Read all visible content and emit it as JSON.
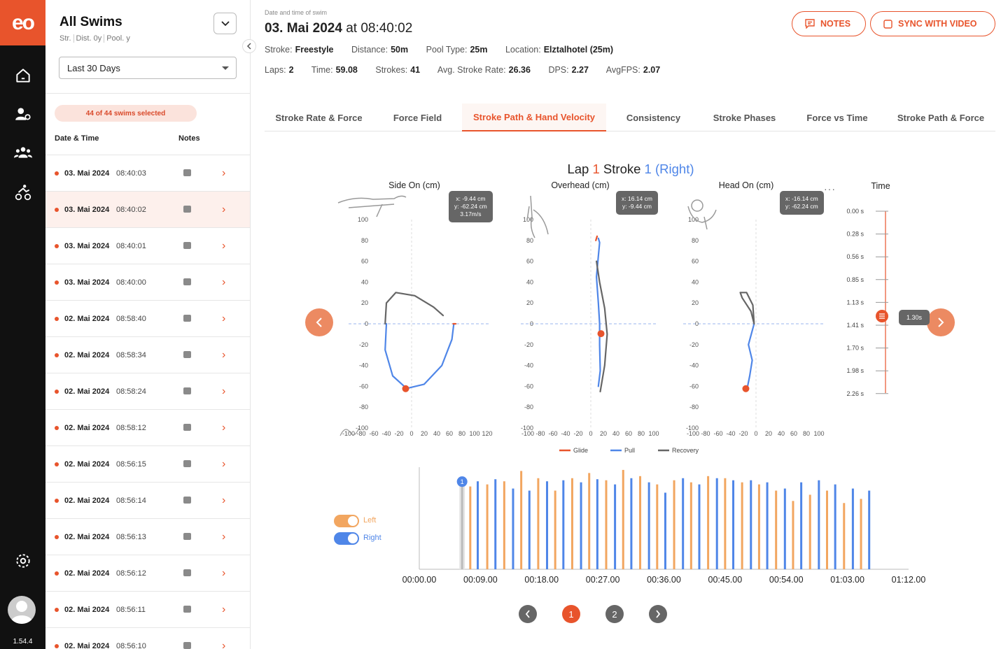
{
  "app": {
    "logo": "eo",
    "version": "1.54.4"
  },
  "sidebar": {
    "title": "All Swims",
    "sub": [
      "Str.",
      "Dist. 0y",
      "Pool. y"
    ],
    "range": "Last  30 Days",
    "selected": "44 of 44 swims selected",
    "col_date": "Date & Time",
    "col_notes": "Notes",
    "swims": [
      {
        "date": "03. Mai 2024",
        "time": "08:40:03"
      },
      {
        "date": "03. Mai 2024",
        "time": "08:40:02"
      },
      {
        "date": "03. Mai 2024",
        "time": "08:40:01"
      },
      {
        "date": "03. Mai 2024",
        "time": "08:40:00"
      },
      {
        "date": "02. Mai 2024",
        "time": "08:58:40"
      },
      {
        "date": "02. Mai 2024",
        "time": "08:58:34"
      },
      {
        "date": "02. Mai 2024",
        "time": "08:58:24"
      },
      {
        "date": "02. Mai 2024",
        "time": "08:58:12"
      },
      {
        "date": "02. Mai 2024",
        "time": "08:56:15"
      },
      {
        "date": "02. Mai 2024",
        "time": "08:56:14"
      },
      {
        "date": "02. Mai 2024",
        "time": "08:56:13"
      },
      {
        "date": "02. Mai 2024",
        "time": "08:56:12"
      },
      {
        "date": "02. Mai 2024",
        "time": "08:56:11"
      },
      {
        "date": "02. Mai 2024",
        "time": "08:56:10"
      }
    ]
  },
  "header": {
    "label": "Date and time of swim",
    "date": "03. Mai 2024",
    "at": " at 08:40:02",
    "notes": "NOTES",
    "sync": "SYNC WITH VIDEO",
    "stroke_l": "Stroke:",
    "stroke": "Freestyle",
    "distance_l": "Distance:",
    "distance": "50m",
    "pool_l": "Pool Type:",
    "pool": "25m",
    "loc_l": "Location:",
    "loc": "Elztalhotel (25m)",
    "laps_l": "Laps:",
    "laps": "2",
    "time_l": "Time:",
    "time": "59.08",
    "strokes_l": "Strokes:",
    "strokes": "41",
    "asr_l": "Avg. Stroke Rate:",
    "asr": "26.36",
    "dps_l": "DPS:",
    "dps": "2.27",
    "fps_l": "AvgFPS:",
    "fps": "2.07"
  },
  "tabs": [
    "Stroke Rate & Force",
    "Force Field",
    "Stroke Path & Hand Velocity",
    "Consistency",
    "Stroke Phases",
    "Force vs Time",
    "Stroke Path & Force"
  ],
  "title": {
    "lap": "Lap ",
    "lap_n": "1",
    "stroke": " Stroke ",
    "stroke_n": "1",
    "side": " (Right)"
  },
  "tooltips": {
    "side": [
      "x: -9.44 cm",
      "y: -62.24 cm",
      "3.17m/s"
    ],
    "over": [
      "x: 16.14 cm",
      "y: -9.44 cm"
    ],
    "head": [
      "x: -16.14  cm",
      "y: -62.24 cm"
    ]
  },
  "time_badge": "1.30s",
  "toggles": {
    "left": "Left",
    "right": "Right"
  },
  "pagination": {
    "p1": "1",
    "p2": "2"
  },
  "colors": {
    "accent": "#e8542c",
    "pull": "#4f86e8",
    "recovery": "#666666",
    "left_bar": "#f2a660"
  },
  "chart_data": [
    {
      "type": "line",
      "title": "Side On (cm)",
      "xlim": [
        -100,
        120
      ],
      "ylim": [
        -100,
        100
      ],
      "x_ticks": [
        -100,
        -80,
        -60,
        -40,
        -20,
        0,
        20,
        40,
        60,
        80,
        100,
        120
      ],
      "y_ticks": [
        100,
        80,
        60,
        40,
        20,
        0,
        -20,
        -40,
        -60,
        -80,
        -100
      ],
      "x_tick_labels": [
        "-100",
        "-80",
        "-60",
        "-40",
        "-20",
        "0",
        "20",
        "40",
        "60",
        "80",
        "100",
        "120"
      ],
      "series": [
        {
          "name": "Pull",
          "points": [
            [
              -40,
              0
            ],
            [
              -42,
              -25
            ],
            [
              -30,
              -50
            ],
            [
              -8,
              -62
            ],
            [
              20,
              -58
            ],
            [
              48,
              -40
            ],
            [
              64,
              -15
            ],
            [
              67,
              0
            ]
          ]
        },
        {
          "name": "Recovery",
          "points": [
            [
              -42,
              0
            ],
            [
              -40,
              20
            ],
            [
              -25,
              30
            ],
            [
              5,
              27
            ],
            [
              35,
              16
            ],
            [
              50,
              8
            ]
          ]
        },
        {
          "name": "Glide",
          "points": [
            [
              66,
              0
            ],
            [
              70,
              0
            ]
          ]
        }
      ],
      "marker": [
        -9.44,
        -62.24
      ]
    },
    {
      "type": "line",
      "title": "Overhead (cm)",
      "xlim": [
        -100,
        100
      ],
      "ylim": [
        -100,
        100
      ],
      "x_ticks": [
        -100,
        -80,
        -60,
        -40,
        -20,
        0,
        20,
        40,
        60,
        80,
        100
      ],
      "y_ticks": [
        100,
        80,
        60,
        40,
        20,
        0,
        -20,
        -40,
        -60,
        -80,
        -100
      ],
      "x_tick_labels": [
        "-100",
        "-80",
        "-60",
        "-40",
        "-20",
        "0",
        "20",
        "40",
        "60",
        "80",
        "100"
      ],
      "series": [
        {
          "name": "Pull",
          "points": [
            [
              12,
              82
            ],
            [
              14,
              78
            ],
            [
              12,
              65
            ],
            [
              9,
              45
            ],
            [
              12,
              20
            ],
            [
              14,
              0
            ],
            [
              14,
              -20
            ],
            [
              15,
              -45
            ],
            [
              12,
              -60
            ]
          ]
        },
        {
          "name": "Recovery",
          "points": [
            [
              9,
              60
            ],
            [
              14,
              40
            ],
            [
              22,
              15
            ],
            [
              26,
              -10
            ],
            [
              22,
              -40
            ],
            [
              15,
              -65
            ]
          ]
        },
        {
          "name": "Glide",
          "points": [
            [
              10,
              84
            ],
            [
              8,
              80
            ]
          ]
        }
      ],
      "marker": [
        16.14,
        -9.44
      ]
    },
    {
      "type": "line",
      "title": "Head On (cm)",
      "xlim": [
        -100,
        100
      ],
      "ylim": [
        -100,
        100
      ],
      "x_ticks": [
        -100,
        -80,
        -60,
        -40,
        -20,
        0,
        20,
        40,
        60,
        80,
        100
      ],
      "y_ticks": [
        100,
        80,
        60,
        40,
        20,
        0,
        -20,
        -40,
        -60,
        -80,
        -100
      ],
      "x_tick_labels": [
        "-100",
        "-80",
        "-60",
        "-40",
        "-20",
        "0",
        "20",
        "40",
        "60",
        "80",
        "100"
      ],
      "series": [
        {
          "name": "Pull",
          "points": [
            [
              -3,
              0
            ],
            [
              -12,
              -20
            ],
            [
              -6,
              -35
            ],
            [
              -10,
              -50
            ],
            [
              -14,
              -62
            ]
          ]
        },
        {
          "name": "Recovery",
          "points": [
            [
              -3,
              0
            ],
            [
              -8,
              12
            ],
            [
              -22,
              25
            ],
            [
              -25,
              30
            ],
            [
              -15,
              30
            ],
            [
              -5,
              18
            ],
            [
              -3,
              0
            ]
          ]
        }
      ],
      "marker": [
        -16.14,
        -62.24
      ]
    },
    {
      "type": "scale",
      "title": "Time",
      "ticks": [
        "0.00 s",
        "0.28 s",
        "0.56 s",
        "0.85 s",
        "1.13 s",
        "1.41 s",
        "1.70 s",
        "1.98 s",
        "2.26 s"
      ],
      "current": 1.3
    },
    {
      "type": "bar",
      "legend": [
        "Glide",
        "Pull",
        "Recovery"
      ],
      "xlim": [
        0,
        72
      ],
      "x_ticks": [
        "00:00.00",
        "00:09.00",
        "00:18.00",
        "00:27.00",
        "00:36.00",
        "00:45.00",
        "00:54.00",
        "01:03.00",
        "01:12.00"
      ],
      "series": [
        {
          "name": "Left"
        },
        {
          "name": "Right"
        }
      ],
      "bars": [
        {
          "t": 6.3,
          "h": 0.82,
          "s": "R",
          "sel": true
        },
        {
          "t": 7.5,
          "h": 0.8,
          "s": "L"
        },
        {
          "t": 8.6,
          "h": 0.85,
          "s": "R"
        },
        {
          "t": 10.0,
          "h": 0.82,
          "s": "L"
        },
        {
          "t": 11.2,
          "h": 0.87,
          "s": "R"
        },
        {
          "t": 12.5,
          "h": 0.85,
          "s": "L"
        },
        {
          "t": 13.8,
          "h": 0.78,
          "s": "R"
        },
        {
          "t": 15.0,
          "h": 0.95,
          "s": "L"
        },
        {
          "t": 16.2,
          "h": 0.76,
          "s": "R"
        },
        {
          "t": 17.5,
          "h": 0.88,
          "s": "L"
        },
        {
          "t": 18.8,
          "h": 0.85,
          "s": "R"
        },
        {
          "t": 20.0,
          "h": 0.76,
          "s": "L"
        },
        {
          "t": 21.2,
          "h": 0.86,
          "s": "R"
        },
        {
          "t": 22.5,
          "h": 0.88,
          "s": "L"
        },
        {
          "t": 23.8,
          "h": 0.84,
          "s": "R"
        },
        {
          "t": 25.0,
          "h": 0.93,
          "s": "L"
        },
        {
          "t": 26.2,
          "h": 0.87,
          "s": "R"
        },
        {
          "t": 27.5,
          "h": 0.86,
          "s": "L"
        },
        {
          "t": 28.8,
          "h": 0.82,
          "s": "R"
        },
        {
          "t": 30.0,
          "h": 0.96,
          "s": "L"
        },
        {
          "t": 31.2,
          "h": 0.88,
          "s": "R"
        },
        {
          "t": 32.5,
          "h": 0.9,
          "s": "L"
        },
        {
          "t": 33.8,
          "h": 0.84,
          "s": "R"
        },
        {
          "t": 35.0,
          "h": 0.82,
          "s": "L"
        },
        {
          "t": 36.2,
          "h": 0.74,
          "s": "R"
        },
        {
          "t": 37.5,
          "h": 0.86,
          "s": "L"
        },
        {
          "t": 38.8,
          "h": 0.88,
          "s": "R"
        },
        {
          "t": 40.0,
          "h": 0.84,
          "s": "L"
        },
        {
          "t": 41.2,
          "h": 0.82,
          "s": "R"
        },
        {
          "t": 42.5,
          "h": 0.9,
          "s": "L"
        },
        {
          "t": 43.8,
          "h": 0.88,
          "s": "R"
        },
        {
          "t": 45.0,
          "h": 0.88,
          "s": "L"
        },
        {
          "t": 46.2,
          "h": 0.86,
          "s": "R"
        },
        {
          "t": 47.5,
          "h": 0.84,
          "s": "L"
        },
        {
          "t": 48.8,
          "h": 0.86,
          "s": "R"
        },
        {
          "t": 50.0,
          "h": 0.82,
          "s": "L"
        },
        {
          "t": 51.2,
          "h": 0.84,
          "s": "R"
        },
        {
          "t": 52.5,
          "h": 0.76,
          "s": "L"
        },
        {
          "t": 53.8,
          "h": 0.78,
          "s": "R"
        },
        {
          "t": 55.0,
          "h": 0.66,
          "s": "L"
        },
        {
          "t": 56.2,
          "h": 0.84,
          "s": "R"
        },
        {
          "t": 57.5,
          "h": 0.72,
          "s": "L"
        },
        {
          "t": 58.8,
          "h": 0.86,
          "s": "R"
        },
        {
          "t": 60.0,
          "h": 0.76,
          "s": "L"
        },
        {
          "t": 61.2,
          "h": 0.82,
          "s": "R"
        },
        {
          "t": 62.5,
          "h": 0.64,
          "s": "L"
        },
        {
          "t": 63.8,
          "h": 0.78,
          "s": "R"
        },
        {
          "t": 65.0,
          "h": 0.68,
          "s": "L"
        },
        {
          "t": 66.2,
          "h": 0.76,
          "s": "R"
        }
      ]
    }
  ]
}
